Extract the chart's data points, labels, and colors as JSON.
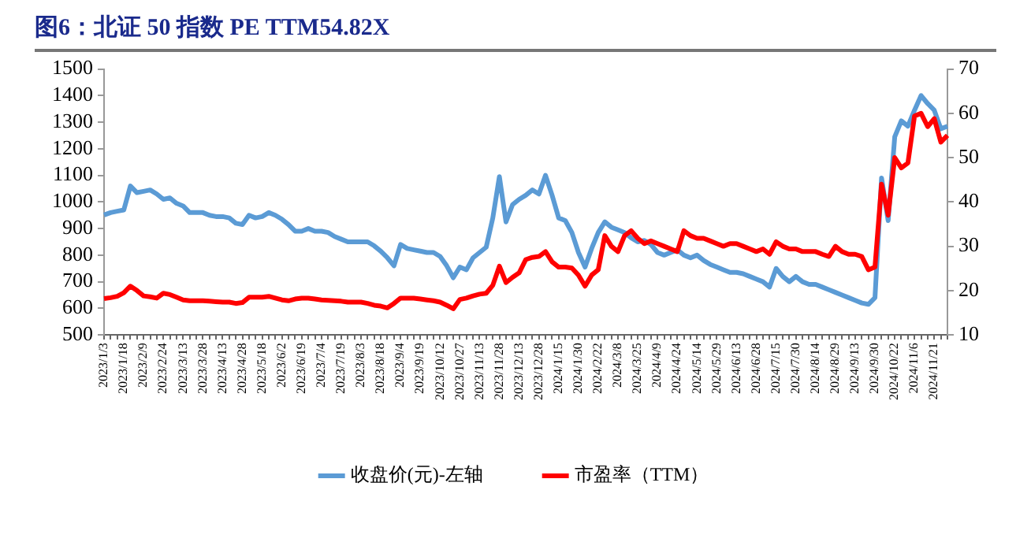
{
  "chart_data": {
    "type": "line",
    "title": "图6：北证 50 指数 PE TTM54.82X",
    "categories": [
      "2023/1/3",
      null,
      null,
      "2023/1/18",
      null,
      null,
      "2023/2/9",
      null,
      null,
      "2023/2/24",
      null,
      null,
      "2023/3/13",
      null,
      null,
      "2023/3/28",
      null,
      null,
      "2023/4/13",
      null,
      null,
      "2023/4/28",
      null,
      null,
      "2023/5/18",
      null,
      null,
      "2023/6/2",
      null,
      null,
      "2023/6/19",
      null,
      null,
      "2023/7/4",
      null,
      null,
      "2023/7/19",
      null,
      null,
      "2023/8/3",
      null,
      null,
      "2023/8/18",
      null,
      null,
      "2023/9/4",
      null,
      null,
      "2023/9/19",
      null,
      null,
      "2023/10/12",
      null,
      null,
      "2023/10/27",
      null,
      null,
      "2023/11/13",
      null,
      null,
      "2023/11/28",
      null,
      null,
      "2023/12/13",
      null,
      null,
      "2023/12/28",
      null,
      null,
      "2024/1/15",
      null,
      null,
      "2024/1/30",
      null,
      null,
      "2024/2/22",
      null,
      null,
      "2024/3/8",
      null,
      null,
      "2024/3/25",
      null,
      null,
      "2024/4/9",
      null,
      null,
      "2024/4/24",
      null,
      null,
      "2024/5/14",
      null,
      null,
      "2024/5/29",
      null,
      null,
      "2024/6/13",
      null,
      null,
      "2024/6/28",
      null,
      null,
      "2024/7/15",
      null,
      null,
      "2024/7/30",
      null,
      null,
      "2024/8/14",
      null,
      null,
      "2024/8/29",
      null,
      null,
      "2024/9/13",
      null,
      null,
      "2024/9/30",
      null,
      null,
      "2024/10/22",
      null,
      null,
      "2024/11/6",
      null,
      null,
      "2024/11/21",
      null,
      null
    ],
    "series": [
      {
        "name": "收盘价(元)-左轴",
        "color": "#5b9bd5",
        "values": [
          951,
          960,
          965,
          970,
          1060,
          1035,
          1040,
          1045,
          1030,
          1010,
          1015,
          995,
          985,
          960,
          960,
          960,
          950,
          945,
          945,
          940,
          920,
          915,
          950,
          940,
          945,
          960,
          950,
          935,
          915,
          890,
          890,
          900,
          890,
          890,
          885,
          870,
          860,
          850,
          850,
          850,
          850,
          835,
          815,
          790,
          760,
          840,
          825,
          820,
          815,
          810,
          810,
          795,
          760,
          715,
          755,
          745,
          790,
          810,
          830,
          940,
          1095,
          925,
          990,
          1010,
          1025,
          1045,
          1030,
          1100,
          1025,
          940,
          930,
          885,
          810,
          755,
          825,
          885,
          925,
          905,
          895,
          885,
          865,
          850,
          855,
          840,
          810,
          800,
          810,
          820,
          800,
          790,
          800,
          780,
          765,
          755,
          745,
          735,
          735,
          730,
          720,
          710,
          700,
          680,
          750,
          720,
          700,
          720,
          700,
          690,
          690,
          680,
          670,
          660,
          650,
          640,
          630,
          620,
          615,
          640,
          1090,
          930,
          1245,
          1305,
          1285,
          1345,
          1400,
          1370,
          1345,
          1275,
          1285
        ]
      },
      {
        "name": "市盈率（TTM）",
        "color": "#ff0000",
        "axis": "y2",
        "values": [
          18.2,
          18.4,
          18.7,
          19.5,
          21,
          20,
          18.8,
          18.6,
          18.3,
          19.4,
          19.1,
          18.5,
          17.9,
          17.7,
          17.7,
          17.7,
          17.6,
          17.5,
          17.4,
          17.4,
          17.1,
          17.3,
          18.5,
          18.5,
          18.5,
          18.7,
          18.3,
          17.9,
          17.7,
          18.1,
          18.3,
          18.3,
          18.1,
          17.9,
          17.8,
          17.7,
          17.6,
          17.4,
          17.4,
          17.4,
          17.1,
          16.7,
          16.5,
          16.1,
          17.1,
          18.3,
          18.3,
          18.3,
          18.1,
          17.9,
          17.7,
          17.4,
          16.7,
          15.9,
          18,
          18.3,
          18.8,
          19.2,
          19.4,
          21.2,
          25.5,
          21.8,
          23,
          24,
          27,
          27.5,
          27.7,
          28.8,
          26.5,
          25.3,
          25.3,
          25.1,
          23.5,
          21,
          23.5,
          24.7,
          32.4,
          30,
          28.8,
          32.4,
          33.5,
          31.8,
          30.6,
          31.2,
          30.6,
          30,
          29.4,
          28.8,
          33.5,
          32.4,
          31.8,
          31.8,
          31.2,
          30.6,
          30,
          30.6,
          30.6,
          30,
          29.4,
          28.8,
          29.4,
          28.2,
          31,
          30,
          29.4,
          29.4,
          28.8,
          28.8,
          28.8,
          28.2,
          27.7,
          30,
          28.8,
          28.2,
          28.2,
          27.7,
          24.7,
          25.3,
          44,
          37,
          50,
          47.7,
          48.8,
          59.4,
          60,
          57,
          58.8,
          53.5,
          55
        ]
      }
    ],
    "ylim": [
      500,
      1500
    ],
    "yticks": [
      500,
      600,
      700,
      800,
      900,
      1000,
      1100,
      1200,
      1300,
      1400,
      1500
    ],
    "y2lim": [
      10,
      70
    ],
    "y2ticks": [
      10,
      20,
      30,
      40,
      50,
      60,
      70
    ],
    "grid": false,
    "legend": "bottom",
    "marker": "none",
    "line_style": "solid"
  }
}
